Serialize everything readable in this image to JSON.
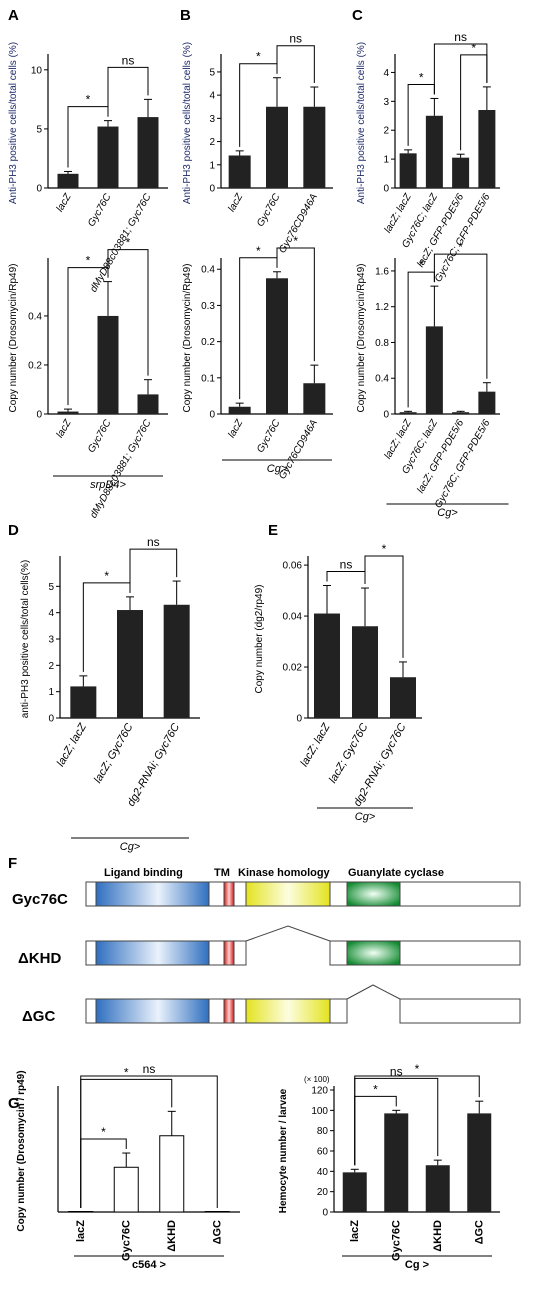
{
  "figure": {
    "panel_labels": {
      "A": "A",
      "B": "B",
      "C": "C",
      "D": "D",
      "E": "E",
      "F": "F",
      "G": "G"
    }
  },
  "colors": {
    "bar": "#222222",
    "axis": "#000000",
    "ylabel_blue": "#1f2a6b",
    "star": "#000000"
  },
  "chart_data": [
    {
      "id": "A_top",
      "type": "bar",
      "ylabel": "Anti-PH3 positive cells/total cells (%)",
      "ylim": [
        0,
        11
      ],
      "yticks": [
        0,
        5,
        10
      ],
      "categories": [
        "lacZ",
        "Gyc76C",
        "dMyD88c03881; Gyc76C"
      ],
      "values": [
        1.2,
        5.2,
        6.0
      ],
      "errors": [
        0.2,
        0.5,
        1.5
      ],
      "brackets": [
        {
          "from": 0,
          "to": 1,
          "text": "*"
        },
        {
          "from": 1,
          "to": 2,
          "text": "ns"
        }
      ]
    },
    {
      "id": "A_bottom",
      "type": "bar",
      "ylabel": "Copy number (Drosomycin/Rp49)",
      "ylim": [
        0,
        0.62
      ],
      "yticks": [
        0,
        0.2,
        0.4
      ],
      "categories": [
        "lacZ",
        "Gyc76C",
        "dMyD88c03881; Gyc76C"
      ],
      "values": [
        0.01,
        0.4,
        0.08
      ],
      "errors": [
        0.01,
        0.14,
        0.06
      ],
      "brackets": [
        {
          "from": 0,
          "to": 1,
          "text": "*"
        },
        {
          "from": 1,
          "to": 2,
          "text": "*"
        }
      ],
      "group_label": "srpD4>"
    },
    {
      "id": "B_top",
      "type": "bar",
      "ylabel": "Anti-PH3 positive cells/total cells (%)",
      "ylim": [
        0,
        5.6
      ],
      "yticks": [
        0,
        1,
        2,
        3,
        4,
        5
      ],
      "categories": [
        "lacZ",
        "Gyc76C",
        "Gyc76CD946A"
      ],
      "values": [
        1.4,
        3.5,
        3.5
      ],
      "errors": [
        0.2,
        1.25,
        0.85
      ],
      "brackets": [
        {
          "from": 0,
          "to": 1,
          "text": "*"
        },
        {
          "from": 1,
          "to": 2,
          "text": "ns"
        }
      ]
    },
    {
      "id": "B_bottom",
      "type": "bar",
      "ylabel": "Copy number (Drosomycin/Rp49)",
      "ylim": [
        0,
        0.42
      ],
      "yticks": [
        0,
        0.1,
        0.2,
        0.3,
        0.4
      ],
      "categories": [
        "lacZ",
        "Gyc76C",
        "Gyc76CD946A"
      ],
      "values": [
        0.02,
        0.375,
        0.085
      ],
      "errors": [
        0.01,
        0.018,
        0.05
      ],
      "brackets": [
        {
          "from": 0,
          "to": 1,
          "text": "*"
        },
        {
          "from": 1,
          "to": 2,
          "text": "*"
        }
      ],
      "group_label": "Cg>"
    },
    {
      "id": "C_top",
      "type": "bar",
      "ylabel": "Anti-PH3 positive cells/total cells (%)",
      "ylim": [
        0,
        4.5
      ],
      "yticks": [
        0,
        1,
        2,
        3,
        4
      ],
      "categories": [
        "lacZ; lacZ",
        "Gyc76C; lacZ",
        "lacZ; GFP-PDE5/6",
        "Gyc76C; GFP-PDE5/6"
      ],
      "values": [
        1.2,
        2.5,
        1.05,
        2.7
      ],
      "errors": [
        0.12,
        0.6,
        0.12,
        0.8
      ],
      "brackets": [
        {
          "from": 0,
          "to": 1,
          "text": "*"
        },
        {
          "from": 2,
          "to": 3,
          "text": "*"
        },
        {
          "from": 1,
          "to": 3,
          "text": "ns"
        }
      ]
    },
    {
      "id": "C_bottom",
      "type": "bar",
      "ylabel": "Copy number (Drosomycin/Rp49)",
      "ylim": [
        0,
        1.7
      ],
      "yticks": [
        0,
        0.4,
        0.8,
        1.2,
        1.6
      ],
      "categories": [
        "lacZ; lacZ",
        "Gyc76C; lacZ",
        "lacZ; GFP-PDE5/6",
        "Gyc76C; GFP-PDE5/6"
      ],
      "values": [
        0.02,
        0.98,
        0.02,
        0.25
      ],
      "errors": [
        0.01,
        0.45,
        0.01,
        0.1
      ],
      "brackets": [
        {
          "from": 0,
          "to": 1,
          "text": "*"
        },
        {
          "from": 1,
          "to": 3,
          "text": "*"
        }
      ],
      "group_label": "Cg>"
    },
    {
      "id": "D",
      "type": "bar",
      "ylabel": "anti-PH3 positive cells/total cells(%)",
      "ylim": [
        0,
        6
      ],
      "yticks": [
        0,
        1,
        2,
        3,
        4,
        5
      ],
      "categories": [
        "lacZ; lacZ",
        "lacZ; Gyc76C",
        "dg2-RNAi; Gyc76C"
      ],
      "values": [
        1.2,
        4.1,
        4.3
      ],
      "errors": [
        0.4,
        0.5,
        0.9
      ],
      "brackets": [
        {
          "from": 0,
          "to": 1,
          "text": "*"
        },
        {
          "from": 1,
          "to": 2,
          "text": "ns"
        }
      ],
      "group_label": "Cg>"
    },
    {
      "id": "E",
      "type": "bar",
      "ylabel": "Copy number (dg2/rp49)",
      "ylim": [
        0,
        0.062
      ],
      "yticks": [
        0,
        0.02,
        0.04,
        0.06
      ],
      "categories": [
        "lacZ; lacZ",
        "lacZ; Gyc76C",
        "dg2-RNAi; Gyc76C"
      ],
      "values": [
        0.041,
        0.036,
        0.016
      ],
      "errors": [
        0.011,
        0.015,
        0.006
      ],
      "brackets": [
        {
          "from": 0,
          "to": 1,
          "text": "ns"
        },
        {
          "from": 1,
          "to": 2,
          "text": "*"
        }
      ],
      "group_label": "Cg>"
    },
    {
      "id": "G_left",
      "type": "bar",
      "ylabel": "Copy number (Drosomycin / rp49)",
      "ylim": [
        0,
        6
      ],
      "yticks": [],
      "bar_style": "open",
      "categories": [
        "lacZ",
        "Gyc76C",
        "ΔKHD",
        "ΔGC"
      ],
      "values": [
        0.0,
        2.2,
        3.75,
        0.0
      ],
      "errors": [
        0,
        0.7,
        1.2,
        0
      ],
      "brackets": [
        {
          "from": 0,
          "to": 1,
          "text": "*"
        },
        {
          "from": 0,
          "to": 2,
          "text": "*"
        },
        {
          "from": 0,
          "to": 3,
          "text": "ns"
        }
      ],
      "group_label": "c564 >"
    },
    {
      "id": "G_right",
      "type": "bar",
      "ylabel": "Hemocyte number / larvae",
      "scale_note": "(× 100)",
      "ylim": [
        0,
        120
      ],
      "yticks": [
        0,
        20,
        40,
        60,
        80,
        100,
        120
      ],
      "categories": [
        "lacZ",
        "Gyc76C",
        "ΔKHD",
        "ΔGC"
      ],
      "values": [
        39,
        97,
        46,
        97
      ],
      "errors": [
        3,
        3,
        5,
        12
      ],
      "brackets": [
        {
          "from": 0,
          "to": 1,
          "text": "*"
        },
        {
          "from": 0,
          "to": 2,
          "text": "ns"
        },
        {
          "from": 0,
          "to": 3,
          "text": "*"
        }
      ],
      "group_label": "Cg >"
    }
  ],
  "domain_diagram": {
    "rows": [
      {
        "name": "Gyc76C",
        "segments": [
          "lbd",
          "tm",
          "khd",
          "gc"
        ]
      },
      {
        "name": "ΔKHD",
        "segments": [
          "lbd",
          "tm",
          "gc"
        ]
      },
      {
        "name": "ΔGC",
        "segments": [
          "lbd",
          "tm",
          "khd"
        ]
      }
    ],
    "domain_labels": {
      "lbd": "Ligand binding",
      "tm": "TM",
      "khd": "Kinase homology",
      "gc": "Guanylate cyclase"
    },
    "domain_colors": {
      "lbd": "#4f8ed2",
      "tm": "#e03030",
      "khd": "#ecec2a",
      "gc": "#1f9a3c"
    }
  }
}
